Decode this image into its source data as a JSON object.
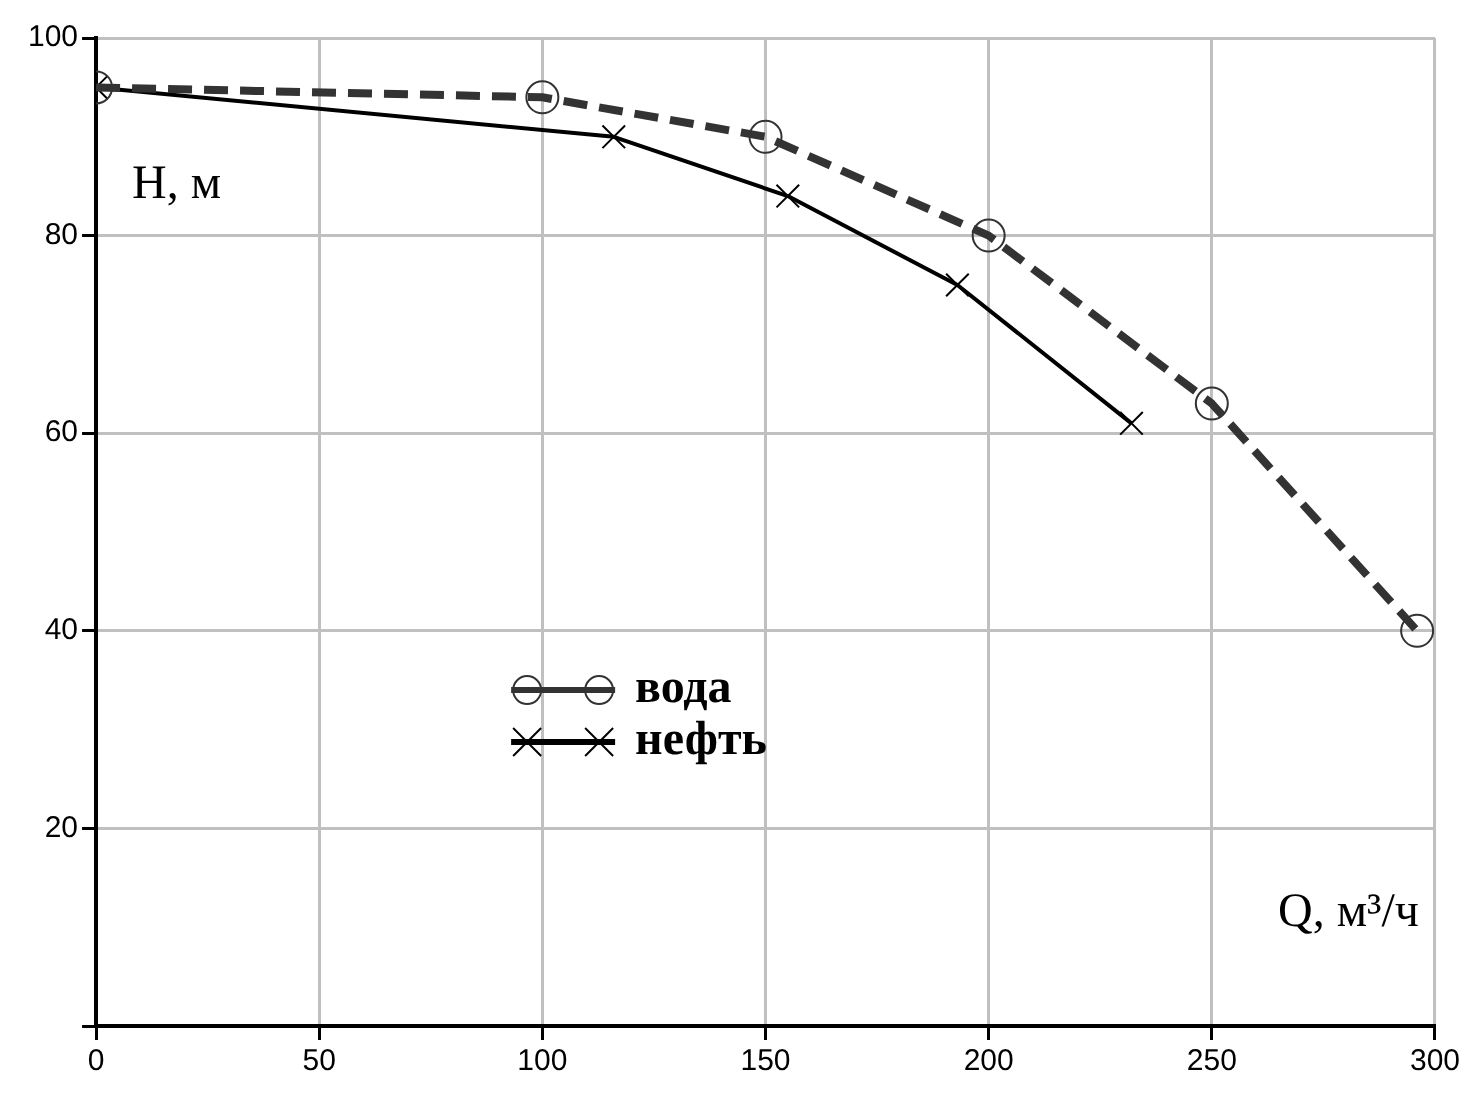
{
  "chart_data": {
    "type": "line",
    "xlabel": "Q, м³/ч",
    "ylabel": "H, м",
    "xlim": [
      0,
      300
    ],
    "ylim": [
      0,
      100
    ],
    "xticks": [
      0,
      50,
      100,
      150,
      200,
      250,
      300
    ],
    "yticks": [
      {
        "value": 0,
        "label": null
      },
      20,
      40,
      60,
      80,
      100
    ],
    "grid": true,
    "legend": "center",
    "series": [
      {
        "name": "вода",
        "color": "#333333",
        "marker": "circle",
        "line_style": "dashed",
        "x": [
          0,
          100,
          150,
          200,
          250,
          296
        ],
        "values": [
          95,
          94,
          90,
          80,
          63,
          40
        ]
      },
      {
        "name": "нефть",
        "color": "#000000",
        "marker": "cross",
        "line_style": "solid",
        "x": [
          0,
          116,
          155,
          193,
          232
        ],
        "values": [
          95,
          90,
          84,
          75,
          61
        ]
      }
    ]
  }
}
